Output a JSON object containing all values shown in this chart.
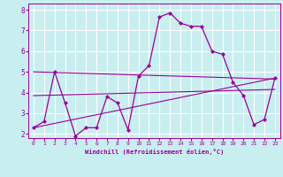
{
  "xlabel": "Windchill (Refroidissement éolien,°C)",
  "background_color": "#c8eef0",
  "grid_color": "#ffffff",
  "line_color": "#990099",
  "xlim": [
    -0.5,
    23.5
  ],
  "ylim": [
    1.8,
    8.3
  ],
  "xticks": [
    0,
    1,
    2,
    3,
    4,
    5,
    6,
    7,
    8,
    9,
    10,
    11,
    12,
    13,
    14,
    15,
    16,
    17,
    18,
    19,
    20,
    21,
    22,
    23
  ],
  "yticks": [
    2,
    3,
    4,
    5,
    6,
    7,
    8
  ],
  "line1_x": [
    0,
    1,
    2,
    3,
    4,
    5,
    6,
    7,
    8,
    9,
    10,
    11,
    12,
    13,
    14,
    15,
    16,
    17,
    18,
    19,
    20,
    21,
    22,
    23
  ],
  "line1_y": [
    2.3,
    2.6,
    5.0,
    3.5,
    1.9,
    2.3,
    2.3,
    3.8,
    3.5,
    2.2,
    4.8,
    5.3,
    7.65,
    7.85,
    7.35,
    7.2,
    7.2,
    6.0,
    5.85,
    4.5,
    3.85,
    2.45,
    2.7,
    4.7
  ],
  "line2_x": [
    0,
    23
  ],
  "line2_y": [
    2.3,
    4.7
  ],
  "line3_x": [
    0,
    23
  ],
  "line3_y": [
    5.0,
    4.65
  ],
  "line4_x": [
    0,
    23
  ],
  "line4_y": [
    3.85,
    4.15
  ]
}
